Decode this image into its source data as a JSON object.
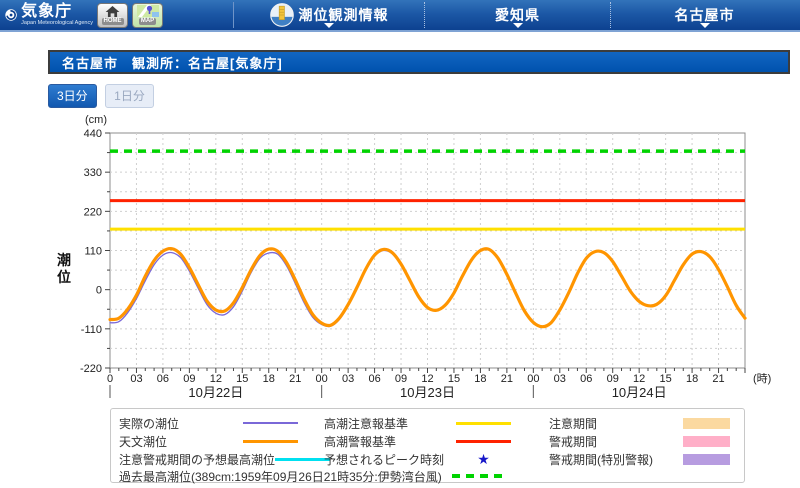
{
  "header": {
    "logo_title": "気象庁",
    "logo_subtitle": "Japan Meteorological Agency",
    "home_label": "HOME",
    "map_label": "MAP",
    "nav_tide": "潮位観測情報",
    "nav_pref": "愛知県",
    "nav_city": "名古屋市"
  },
  "title_bar": {
    "text": "名古屋市　観測所：名古屋[気象庁]"
  },
  "toolbar": {
    "three_day_label": "3日分",
    "one_day_label": "1日分"
  },
  "chart_data": {
    "type": "line",
    "ylabel": "潮位",
    "unit_y": "(cm)",
    "unit_x": "(時)",
    "ylim": [
      -220,
      440
    ],
    "ytick_interval": 110,
    "grid_interval_y": 55,
    "days": [
      "10月22日",
      "10月23日",
      "10月24日"
    ],
    "xtick_hours": [
      0,
      3,
      6,
      9,
      12,
      15,
      18,
      21
    ],
    "grid_interval_x_hours": 3,
    "reference_lines": [
      {
        "name": "過去最高潮位",
        "value": 389,
        "color": "#00d300",
        "style": "dashed",
        "width": 3.5
      },
      {
        "name": "高潮警報基準",
        "value": 250,
        "color": "#ff2200",
        "style": "solid",
        "width": 3
      },
      {
        "name": "高潮注意報基準",
        "value": 170,
        "color": "#ffe000",
        "style": "solid",
        "width": 3
      }
    ],
    "series": [
      {
        "name": "実際の潮位",
        "color": "#7a68d8",
        "width": 1.3,
        "start_hour": 0,
        "values": [
          -93,
          -90,
          -65,
          -25,
          25,
          70,
          97,
          104,
          90,
          52,
          4,
          -42,
          -66,
          -70,
          -48,
          -4,
          48,
          88,
          103,
          100,
          68,
          18,
          -36,
          -78,
          -98,
          -103,
          -84,
          -46,
          2,
          54,
          94,
          110,
          101,
          69,
          23,
          -23,
          -52
        ]
      },
      {
        "name": "天文潮位",
        "color": "#ff9500",
        "width": 3.2,
        "start_hour": 0,
        "values": [
          -84,
          -80,
          -55,
          -15,
          38,
          82,
          108,
          115,
          100,
          62,
          14,
          -32,
          -57,
          -60,
          -37,
          6,
          56,
          96,
          114,
          108,
          77,
          28,
          -26,
          -70,
          -94,
          -100,
          -80,
          -42,
          6,
          58,
          97,
          113,
          104,
          72,
          26,
          -20,
          -50,
          -58,
          -44,
          -9,
          40,
          84,
          110,
          113,
          88,
          43,
          -10,
          -60,
          -92,
          -104,
          -93,
          -57,
          -9,
          45,
          88,
          107,
          104,
          79,
          38,
          -4,
          -33,
          -45,
          -41,
          -17,
          26,
          70,
          100,
          107,
          93,
          57,
          8,
          -44,
          -80
        ]
      }
    ]
  },
  "legend": {
    "actual": "実際の潮位",
    "astronomical": "天文潮位",
    "expected_max": "注意警戒期間の予想最高潮位",
    "advisory_criterion": "高潮注意報基準",
    "warning_criterion": "高潮警報基準",
    "peak_time": "予想されるピーク時刻",
    "peak_star": "★",
    "advisory_period": "注意期間",
    "warning_period": "警戒期間",
    "warning_period_special": "警戒期間(特別警報)",
    "past_highest": "過去最高潮位(389cm:1959年09月26日21時35分:伊勢湾台風)",
    "colors": {
      "actual": "#7a68d8",
      "astronomical": "#ff9500",
      "expected_max": "#00e0f0",
      "advisory_criterion": "#ffe000",
      "warning_criterion": "#ff2200",
      "advisory_period": "#fbd9a0",
      "warning_period": "#ffafc8",
      "warning_period_special": "#b79ce0",
      "past_highest": "#00d300",
      "peak_star": "#1717c9"
    }
  }
}
